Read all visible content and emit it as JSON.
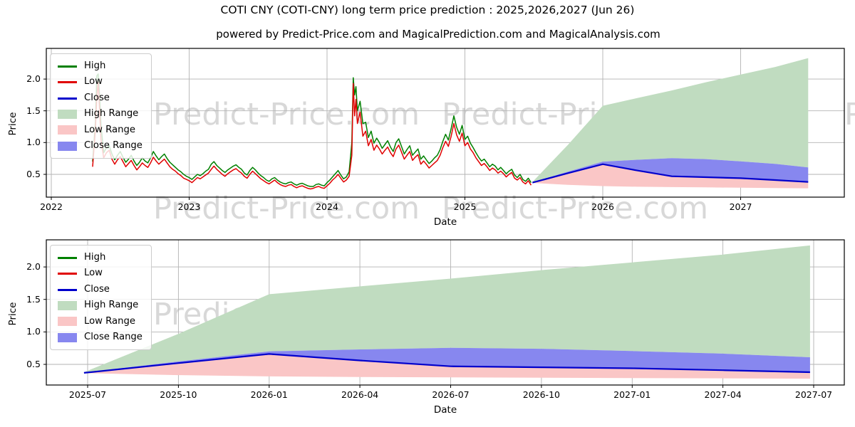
{
  "title": "COTI CNY (COTI-CNY) long term price prediction : 2025,2026,2027 (Jun 26)",
  "subtitle": "powered by Predict-Price.com and MagicalPrediction.com and MagicalAnalysis.com",
  "watermark_text": "Predict-Price.com",
  "colors": {
    "high": "#008000",
    "low": "#e00000",
    "close": "#0000cc",
    "high_range": "#c0dcc0",
    "low_range": "#fac6c6",
    "close_range": "#8787ef",
    "grid": "#b3b3b3",
    "spine": "#000000",
    "watermark": "#d8d8d8"
  },
  "legend": {
    "items": [
      {
        "label": "High",
        "type": "line",
        "color": "#008000"
      },
      {
        "label": "Low",
        "type": "line",
        "color": "#e00000"
      },
      {
        "label": "Close",
        "type": "line",
        "color": "#0000cc"
      },
      {
        "label": "High Range",
        "type": "patch",
        "color": "#c0dcc0"
      },
      {
        "label": "Low Range",
        "type": "patch",
        "color": "#fac6c6"
      },
      {
        "label": "Close Range",
        "type": "patch",
        "color": "#8787ef"
      }
    ]
  },
  "chart_data": [
    {
      "type": "line",
      "name": "history-plus-forecast",
      "xlabel": "Date",
      "ylabel": "Price",
      "x_ticks": [
        {
          "t": 2022,
          "label": "2022"
        },
        {
          "t": 2023,
          "label": "2023"
        },
        {
          "t": 2024,
          "label": "2024"
        },
        {
          "t": 2025,
          "label": "2025"
        },
        {
          "t": 2026,
          "label": "2026"
        },
        {
          "t": 2027,
          "label": "2027"
        }
      ],
      "y_ticks": [
        {
          "v": 0.5,
          "label": "0.5"
        },
        {
          "v": 1.0,
          "label": "1.0"
        },
        {
          "v": 1.5,
          "label": "1.5"
        },
        {
          "v": 2.0,
          "label": "2.0"
        }
      ],
      "xlim": [
        2021.96,
        2027.77
      ],
      "ylim": [
        0.14,
        2.48
      ],
      "grid": true,
      "legend_position": "upper left",
      "history_points_format": [
        "t_years",
        "low",
        "high"
      ],
      "history": [
        [
          2022.3,
          0.62,
          0.7
        ],
        [
          2022.32,
          1.2,
          1.32
        ],
        [
          2022.33,
          1.72,
          2.05
        ],
        [
          2022.34,
          1.95,
          2.08
        ],
        [
          2022.35,
          1.52,
          1.75
        ],
        [
          2022.36,
          1.05,
          1.28
        ],
        [
          2022.38,
          0.76,
          0.84
        ],
        [
          2022.4,
          0.84,
          0.92
        ],
        [
          2022.42,
          0.88,
          0.95
        ],
        [
          2022.44,
          0.74,
          0.82
        ],
        [
          2022.46,
          0.66,
          0.73
        ],
        [
          2022.48,
          0.73,
          0.8
        ],
        [
          2022.5,
          0.78,
          0.86
        ],
        [
          2022.52,
          0.7,
          0.77
        ],
        [
          2022.54,
          0.62,
          0.69
        ],
        [
          2022.56,
          0.67,
          0.74
        ],
        [
          2022.58,
          0.72,
          0.8
        ],
        [
          2022.6,
          0.64,
          0.71
        ],
        [
          2022.62,
          0.57,
          0.64
        ],
        [
          2022.64,
          0.62,
          0.69
        ],
        [
          2022.66,
          0.68,
          0.76
        ],
        [
          2022.68,
          0.64,
          0.71
        ],
        [
          2022.7,
          0.61,
          0.68
        ],
        [
          2022.72,
          0.68,
          0.76
        ],
        [
          2022.74,
          0.77,
          0.86
        ],
        [
          2022.76,
          0.71,
          0.79
        ],
        [
          2022.78,
          0.66,
          0.73
        ],
        [
          2022.8,
          0.7,
          0.78
        ],
        [
          2022.82,
          0.74,
          0.82
        ],
        [
          2022.84,
          0.68,
          0.75
        ],
        [
          2022.86,
          0.62,
          0.69
        ],
        [
          2022.88,
          0.58,
          0.65
        ],
        [
          2022.9,
          0.55,
          0.61
        ],
        [
          2022.92,
          0.51,
          0.57
        ],
        [
          2022.94,
          0.48,
          0.54
        ],
        [
          2022.96,
          0.44,
          0.5
        ],
        [
          2022.98,
          0.42,
          0.47
        ],
        [
          2023.0,
          0.4,
          0.45
        ],
        [
          2023.02,
          0.37,
          0.42
        ],
        [
          2023.04,
          0.41,
          0.46
        ],
        [
          2023.06,
          0.45,
          0.5
        ],
        [
          2023.08,
          0.43,
          0.48
        ],
        [
          2023.1,
          0.46,
          0.51
        ],
        [
          2023.12,
          0.49,
          0.55
        ],
        [
          2023.14,
          0.52,
          0.58
        ],
        [
          2023.16,
          0.58,
          0.66
        ],
        [
          2023.18,
          0.63,
          0.7
        ],
        [
          2023.2,
          0.58,
          0.64
        ],
        [
          2023.22,
          0.54,
          0.6
        ],
        [
          2023.24,
          0.5,
          0.56
        ],
        [
          2023.26,
          0.47,
          0.53
        ],
        [
          2023.28,
          0.51,
          0.57
        ],
        [
          2023.3,
          0.54,
          0.6
        ],
        [
          2023.32,
          0.57,
          0.63
        ],
        [
          2023.34,
          0.59,
          0.65
        ],
        [
          2023.36,
          0.55,
          0.61
        ],
        [
          2023.38,
          0.52,
          0.58
        ],
        [
          2023.4,
          0.47,
          0.52
        ],
        [
          2023.42,
          0.44,
          0.49
        ],
        [
          2023.44,
          0.5,
          0.56
        ],
        [
          2023.46,
          0.55,
          0.61
        ],
        [
          2023.48,
          0.51,
          0.57
        ],
        [
          2023.5,
          0.47,
          0.52
        ],
        [
          2023.52,
          0.43,
          0.48
        ],
        [
          2023.54,
          0.4,
          0.45
        ],
        [
          2023.56,
          0.37,
          0.41
        ],
        [
          2023.58,
          0.35,
          0.39
        ],
        [
          2023.6,
          0.38,
          0.43
        ],
        [
          2023.62,
          0.41,
          0.45
        ],
        [
          2023.64,
          0.37,
          0.41
        ],
        [
          2023.66,
          0.34,
          0.38
        ],
        [
          2023.68,
          0.32,
          0.36
        ],
        [
          2023.7,
          0.31,
          0.35
        ],
        [
          2023.72,
          0.33,
          0.37
        ],
        [
          2023.74,
          0.34,
          0.38
        ],
        [
          2023.76,
          0.31,
          0.35
        ],
        [
          2023.78,
          0.29,
          0.33
        ],
        [
          2023.8,
          0.31,
          0.35
        ],
        [
          2023.82,
          0.32,
          0.36
        ],
        [
          2023.84,
          0.3,
          0.34
        ],
        [
          2023.86,
          0.28,
          0.32
        ],
        [
          2023.88,
          0.27,
          0.31
        ],
        [
          2023.9,
          0.28,
          0.31
        ],
        [
          2023.92,
          0.3,
          0.34
        ],
        [
          2023.94,
          0.31,
          0.35
        ],
        [
          2023.96,
          0.29,
          0.33
        ],
        [
          2023.98,
          0.28,
          0.32
        ],
        [
          2024.0,
          0.32,
          0.37
        ],
        [
          2024.02,
          0.36,
          0.41
        ],
        [
          2024.04,
          0.41,
          0.46
        ],
        [
          2024.06,
          0.45,
          0.51
        ],
        [
          2024.08,
          0.5,
          0.56
        ],
        [
          2024.1,
          0.44,
          0.49
        ],
        [
          2024.12,
          0.38,
          0.43
        ],
        [
          2024.14,
          0.41,
          0.46
        ],
        [
          2024.16,
          0.47,
          0.54
        ],
        [
          2024.18,
          0.8,
          1.0
        ],
        [
          2024.19,
          1.93,
          2.02
        ],
        [
          2024.2,
          1.42,
          1.75
        ],
        [
          2024.21,
          1.68,
          1.88
        ],
        [
          2024.22,
          1.3,
          1.5
        ],
        [
          2024.24,
          1.48,
          1.65
        ],
        [
          2024.26,
          1.1,
          1.3
        ],
        [
          2024.28,
          1.18,
          1.32
        ],
        [
          2024.3,
          0.95,
          1.08
        ],
        [
          2024.32,
          1.05,
          1.18
        ],
        [
          2024.34,
          0.88,
          0.99
        ],
        [
          2024.36,
          0.96,
          1.07
        ],
        [
          2024.38,
          0.9,
          1.0
        ],
        [
          2024.4,
          0.82,
          0.91
        ],
        [
          2024.42,
          0.88,
          0.97
        ],
        [
          2024.44,
          0.93,
          1.03
        ],
        [
          2024.46,
          0.84,
          0.93
        ],
        [
          2024.48,
          0.78,
          0.86
        ],
        [
          2024.5,
          0.9,
          1.0
        ],
        [
          2024.52,
          0.96,
          1.06
        ],
        [
          2024.54,
          0.85,
          0.94
        ],
        [
          2024.56,
          0.74,
          0.82
        ],
        [
          2024.58,
          0.8,
          0.89
        ],
        [
          2024.6,
          0.86,
          0.95
        ],
        [
          2024.62,
          0.72,
          0.8
        ],
        [
          2024.64,
          0.77,
          0.85
        ],
        [
          2024.66,
          0.81,
          0.9
        ],
        [
          2024.68,
          0.66,
          0.74
        ],
        [
          2024.7,
          0.71,
          0.79
        ],
        [
          2024.72,
          0.66,
          0.73
        ],
        [
          2024.74,
          0.6,
          0.67
        ],
        [
          2024.76,
          0.64,
          0.71
        ],
        [
          2024.78,
          0.68,
          0.76
        ],
        [
          2024.8,
          0.72,
          0.8
        ],
        [
          2024.82,
          0.8,
          0.89
        ],
        [
          2024.84,
          0.92,
          1.02
        ],
        [
          2024.86,
          1.02,
          1.13
        ],
        [
          2024.88,
          0.94,
          1.04
        ],
        [
          2024.9,
          1.1,
          1.22
        ],
        [
          2024.92,
          1.3,
          1.42
        ],
        [
          2024.94,
          1.12,
          1.24
        ],
        [
          2024.96,
          1.02,
          1.13
        ],
        [
          2024.98,
          1.15,
          1.27
        ],
        [
          2025.0,
          0.95,
          1.05
        ],
        [
          2025.02,
          1.0,
          1.1
        ],
        [
          2025.04,
          0.9,
          0.99
        ],
        [
          2025.06,
          0.84,
          0.92
        ],
        [
          2025.08,
          0.76,
          0.84
        ],
        [
          2025.1,
          0.7,
          0.77
        ],
        [
          2025.12,
          0.64,
          0.71
        ],
        [
          2025.14,
          0.67,
          0.74
        ],
        [
          2025.16,
          0.62,
          0.68
        ],
        [
          2025.18,
          0.56,
          0.62
        ],
        [
          2025.2,
          0.6,
          0.66
        ],
        [
          2025.22,
          0.57,
          0.63
        ],
        [
          2025.24,
          0.52,
          0.57
        ],
        [
          2025.26,
          0.55,
          0.61
        ],
        [
          2025.28,
          0.51,
          0.56
        ],
        [
          2025.3,
          0.46,
          0.51
        ],
        [
          2025.32,
          0.5,
          0.55
        ],
        [
          2025.34,
          0.53,
          0.58
        ],
        [
          2025.36,
          0.44,
          0.49
        ],
        [
          2025.38,
          0.41,
          0.45
        ],
        [
          2025.4,
          0.45,
          0.5
        ],
        [
          2025.42,
          0.38,
          0.42
        ],
        [
          2025.44,
          0.35,
          0.39
        ],
        [
          2025.46,
          0.4,
          0.44
        ],
        [
          2025.48,
          0.33,
          0.37
        ]
      ],
      "forecast": {
        "t": [
          2025.49,
          2025.75,
          2026.0,
          2026.25,
          2026.5,
          2026.75,
          2027.0,
          2027.25,
          2027.49
        ],
        "close": [
          0.37,
          0.52,
          0.66,
          0.56,
          0.47,
          0.455,
          0.44,
          0.41,
          0.38
        ],
        "close_top": [
          0.375,
          0.545,
          0.7,
          0.73,
          0.755,
          0.74,
          0.705,
          0.665,
          0.61
        ],
        "low_bot": [
          0.365,
          0.335,
          0.315,
          0.305,
          0.3,
          0.295,
          0.29,
          0.285,
          0.28
        ],
        "high_top": [
          0.38,
          0.97,
          1.58,
          1.7,
          1.82,
          1.95,
          2.07,
          2.19,
          2.33
        ]
      }
    },
    {
      "type": "line",
      "name": "forecast-zoom",
      "xlabel": "Date",
      "ylabel": "Price",
      "x_ticks": [
        {
          "t": 2025.5,
          "label": "2025-07"
        },
        {
          "t": 2025.75,
          "label": "2025-10"
        },
        {
          "t": 2026.0,
          "label": "2026-01"
        },
        {
          "t": 2026.25,
          "label": "2026-04"
        },
        {
          "t": 2026.5,
          "label": "2026-07"
        },
        {
          "t": 2026.75,
          "label": "2026-10"
        },
        {
          "t": 2027.0,
          "label": "2027-01"
        },
        {
          "t": 2027.25,
          "label": "2027-04"
        },
        {
          "t": 2027.5,
          "label": "2027-07"
        }
      ],
      "y_ticks": [
        {
          "v": 0.5,
          "label": "0.5"
        },
        {
          "v": 1.0,
          "label": "1.0"
        },
        {
          "v": 1.5,
          "label": "1.5"
        },
        {
          "v": 2.0,
          "label": "2.0"
        }
      ],
      "xlim": [
        2025.39,
        2027.59
      ],
      "ylim": [
        0.18,
        2.42
      ],
      "grid": true,
      "legend_position": "upper left",
      "forecast_source": "same series as chart 0 forecast"
    }
  ]
}
